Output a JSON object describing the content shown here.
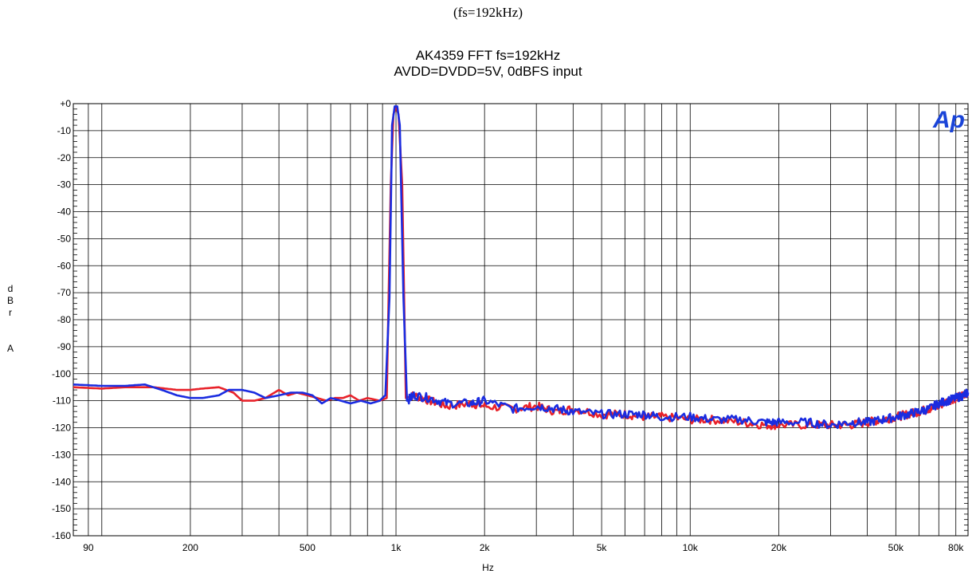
{
  "caption": "(fs=192kHz)",
  "chart_data": {
    "type": "line",
    "title": "AK4359 FFT fs=192kHz",
    "subtitle": "AVDD=DVDD=5V, 0dBFS input",
    "xlabel": "Hz",
    "ylabel": [
      "d",
      "B",
      "r",
      "A"
    ],
    "x_scale": "log",
    "xlim": [
      80,
      88000
    ],
    "ylim": [
      -160,
      0
    ],
    "grid": true,
    "logo": "Ap",
    "x_ticks": [
      {
        "v": 90,
        "label": "90"
      },
      {
        "v": 200,
        "label": "200"
      },
      {
        "v": 500,
        "label": "500"
      },
      {
        "v": 1000,
        "label": "1k"
      },
      {
        "v": 2000,
        "label": "2k"
      },
      {
        "v": 5000,
        "label": "5k"
      },
      {
        "v": 10000,
        "label": "10k"
      },
      {
        "v": 20000,
        "label": "20k"
      },
      {
        "v": 50000,
        "label": "50k"
      },
      {
        "v": 80000,
        "label": "80k"
      }
    ],
    "y_ticks": [
      {
        "v": 0,
        "label": "+0"
      },
      {
        "v": -10,
        "label": "-10"
      },
      {
        "v": -20,
        "label": "-20"
      },
      {
        "v": -30,
        "label": "-30"
      },
      {
        "v": -40,
        "label": "-40"
      },
      {
        "v": -50,
        "label": "-50"
      },
      {
        "v": -60,
        "label": "-60"
      },
      {
        "v": -70,
        "label": "-70"
      },
      {
        "v": -80,
        "label": "-80"
      },
      {
        "v": -90,
        "label": "-90"
      },
      {
        "v": -100,
        "label": "-100"
      },
      {
        "v": -110,
        "label": "-110"
      },
      {
        "v": -120,
        "label": "-120"
      },
      {
        "v": -130,
        "label": "-130"
      },
      {
        "v": -140,
        "label": "-140"
      },
      {
        "v": -150,
        "label": "-150"
      },
      {
        "v": -160,
        "label": "-160"
      }
    ],
    "series": [
      {
        "color": "#e8222a",
        "points": [
          [
            80,
            -105
          ],
          [
            100,
            -105.5
          ],
          [
            120,
            -105
          ],
          [
            150,
            -105
          ],
          [
            180,
            -106
          ],
          [
            200,
            -106
          ],
          [
            220,
            -105.5
          ],
          [
            250,
            -105
          ],
          [
            280,
            -107
          ],
          [
            300,
            -110
          ],
          [
            330,
            -110
          ],
          [
            360,
            -109
          ],
          [
            400,
            -106
          ],
          [
            430,
            -108
          ],
          [
            460,
            -107
          ],
          [
            500,
            -108
          ],
          [
            540,
            -109
          ],
          [
            580,
            -110
          ],
          [
            620,
            -109
          ],
          [
            660,
            -109
          ],
          [
            700,
            -108
          ],
          [
            750,
            -110
          ],
          [
            800,
            -109
          ],
          [
            880,
            -110
          ],
          [
            930,
            -109
          ],
          [
            960,
            -30
          ],
          [
            980,
            -4
          ],
          [
            1000,
            -1
          ],
          [
            1020,
            -4
          ],
          [
            1050,
            -30
          ],
          [
            1080,
            -109
          ],
          [
            1150,
            -108
          ],
          [
            1300,
            -110
          ],
          [
            1500,
            -112
          ],
          [
            1800,
            -111
          ],
          [
            2000,
            -112
          ],
          [
            2500,
            -113
          ],
          [
            3000,
            -112
          ],
          [
            3500,
            -114
          ],
          [
            4000,
            -113
          ],
          [
            5000,
            -115
          ],
          [
            6000,
            -115
          ],
          [
            7000,
            -116
          ],
          [
            8000,
            -116
          ],
          [
            10000,
            -117
          ],
          [
            12000,
            -117
          ],
          [
            15000,
            -118
          ],
          [
            18000,
            -119
          ],
          [
            20000,
            -119
          ],
          [
            25000,
            -119
          ],
          [
            30000,
            -119
          ],
          [
            35000,
            -119
          ],
          [
            40000,
            -118
          ],
          [
            45000,
            -117
          ],
          [
            50000,
            -116
          ],
          [
            55000,
            -115
          ],
          [
            60000,
            -114
          ],
          [
            65000,
            -113
          ],
          [
            70000,
            -112
          ],
          [
            75000,
            -110
          ],
          [
            80000,
            -109
          ],
          [
            85000,
            -108
          ],
          [
            88000,
            -107
          ]
        ]
      },
      {
        "color": "#1a2ce0",
        "points": [
          [
            80,
            -104
          ],
          [
            100,
            -104.5
          ],
          [
            120,
            -104.5
          ],
          [
            140,
            -104
          ],
          [
            160,
            -106
          ],
          [
            180,
            -108
          ],
          [
            200,
            -109
          ],
          [
            220,
            -109
          ],
          [
            250,
            -108
          ],
          [
            270,
            -106
          ],
          [
            300,
            -106
          ],
          [
            330,
            -107
          ],
          [
            360,
            -109
          ],
          [
            400,
            -108
          ],
          [
            440,
            -107
          ],
          [
            480,
            -107
          ],
          [
            520,
            -108
          ],
          [
            560,
            -111
          ],
          [
            600,
            -109
          ],
          [
            650,
            -110
          ],
          [
            700,
            -111
          ],
          [
            760,
            -110
          ],
          [
            820,
            -111
          ],
          [
            880,
            -110
          ],
          [
            920,
            -108
          ],
          [
            950,
            -72
          ],
          [
            970,
            -8
          ],
          [
            990,
            -1
          ],
          [
            1010,
            -1
          ],
          [
            1030,
            -8
          ],
          [
            1060,
            -72
          ],
          [
            1090,
            -110
          ],
          [
            1150,
            -108
          ],
          [
            1300,
            -109
          ],
          [
            1500,
            -111
          ],
          [
            1800,
            -111
          ],
          [
            2000,
            -110
          ],
          [
            2500,
            -113
          ],
          [
            3000,
            -112
          ],
          [
            3500,
            -113
          ],
          [
            4000,
            -114
          ],
          [
            5000,
            -115
          ],
          [
            6000,
            -115
          ],
          [
            7000,
            -115
          ],
          [
            8000,
            -116
          ],
          [
            10000,
            -116
          ],
          [
            12000,
            -117
          ],
          [
            15000,
            -117
          ],
          [
            18000,
            -118
          ],
          [
            20000,
            -118
          ],
          [
            25000,
            -118
          ],
          [
            30000,
            -119
          ],
          [
            35000,
            -118
          ],
          [
            40000,
            -118
          ],
          [
            45000,
            -117
          ],
          [
            50000,
            -116
          ],
          [
            55000,
            -115
          ],
          [
            60000,
            -114
          ],
          [
            65000,
            -113
          ],
          [
            70000,
            -111
          ],
          [
            75000,
            -110
          ],
          [
            80000,
            -109
          ],
          [
            85000,
            -108
          ],
          [
            88000,
            -107
          ]
        ]
      }
    ]
  }
}
